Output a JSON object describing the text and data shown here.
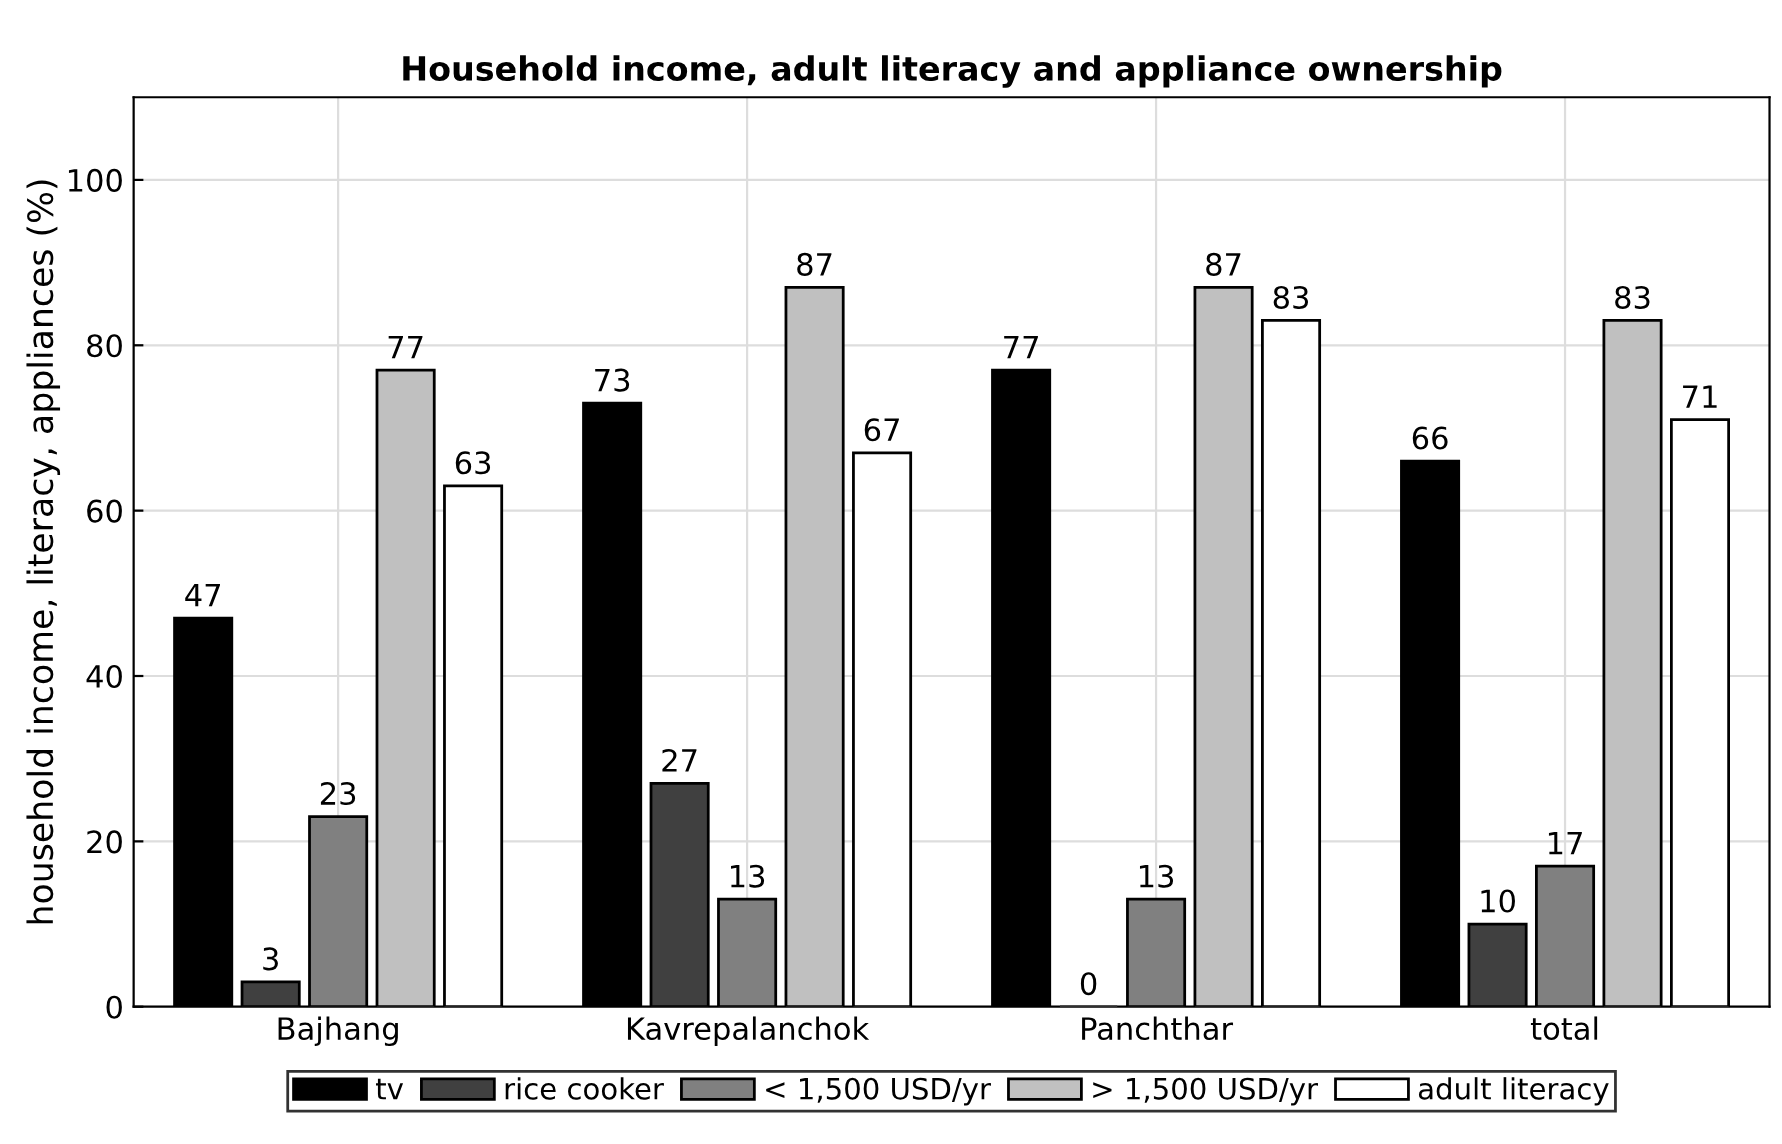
{
  "chart_data": {
    "type": "bar",
    "title": "Household income, adult literacy and appliance ownership",
    "ylabel": "household income, literacy, appliances (%)",
    "categories": [
      "Bajhang",
      "Kavrepalanchok",
      "Panchthar",
      "total"
    ],
    "series": [
      {
        "name": "tv",
        "color": "#000000",
        "values": [
          47,
          73,
          77,
          66
        ]
      },
      {
        "name": "rice cooker",
        "color": "#404040",
        "values": [
          3,
          27,
          0,
          10
        ]
      },
      {
        "name": "< 1,500 USD/yr",
        "color": "#808080",
        "values": [
          23,
          13,
          13,
          17
        ]
      },
      {
        "name": "> 1,500 USD/yr",
        "color": "#c0c0c0",
        "values": [
          77,
          87,
          87,
          83
        ]
      },
      {
        "name": "adult literacy",
        "color": "#ffffff",
        "values": [
          63,
          67,
          83,
          71
        ]
      }
    ],
    "ylim": [
      0,
      110
    ],
    "yticks": [
      0,
      20,
      40,
      60,
      80,
      100
    ],
    "grid": true,
    "legend": "bottom",
    "data_labels": true
  }
}
